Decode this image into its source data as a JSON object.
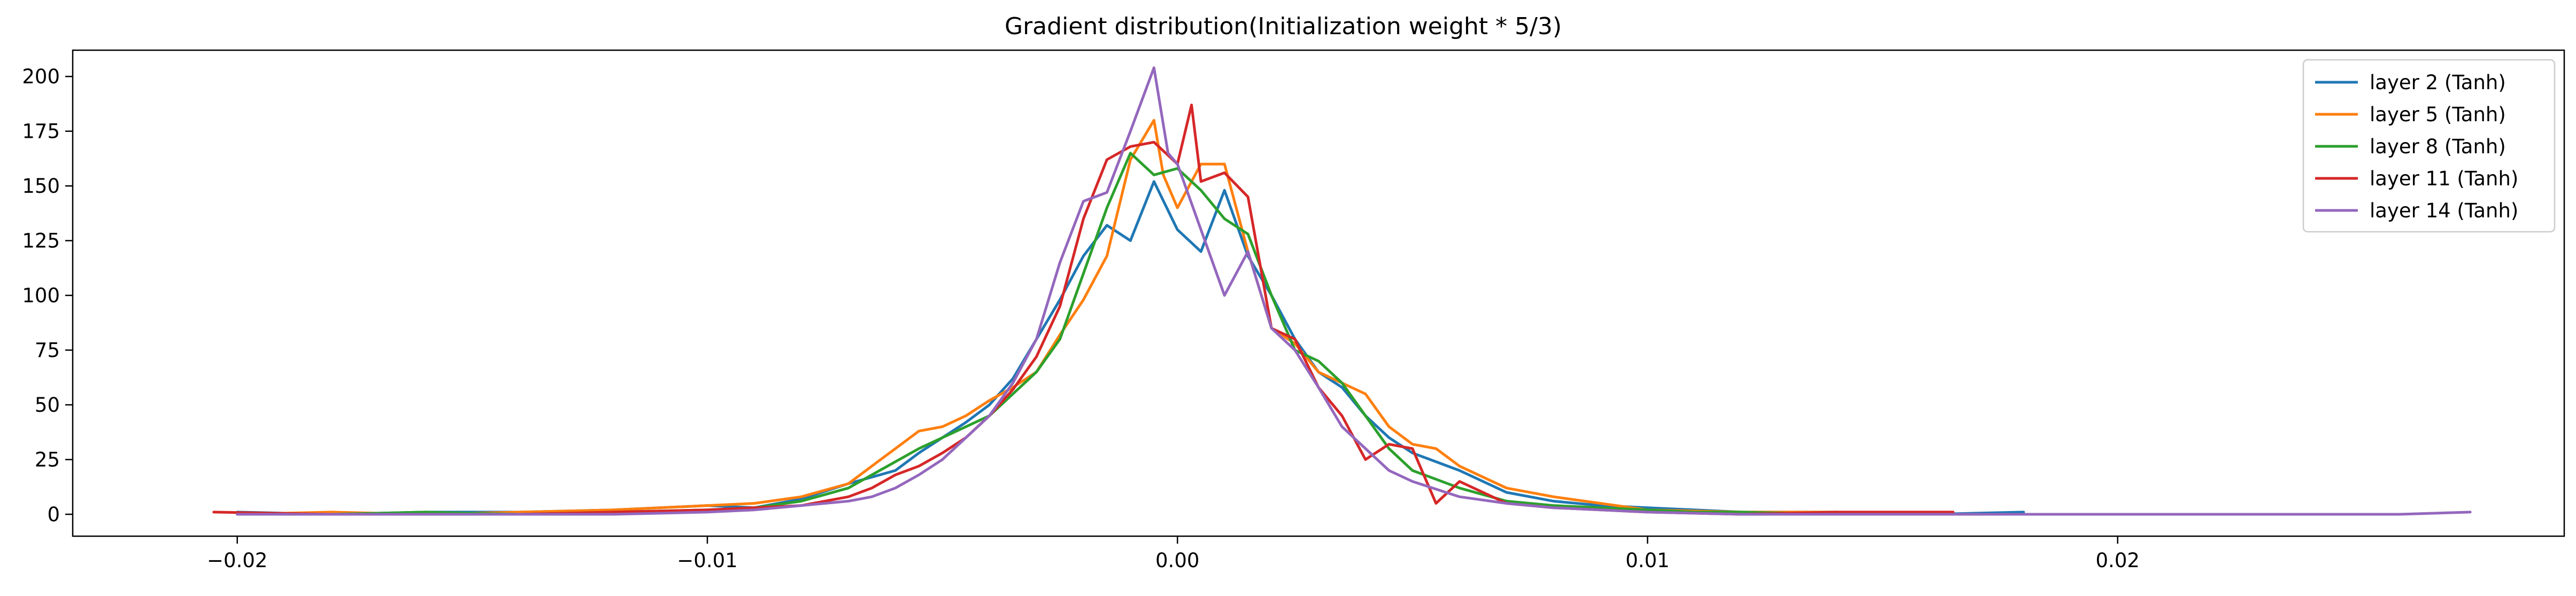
{
  "chart_data": {
    "type": "line",
    "title": "Gradient distribution(Initialization weight * 5/3)",
    "xlabel": "",
    "ylabel": "",
    "xlim": [
      -0.0235,
      0.0295
    ],
    "ylim": [
      -10,
      212
    ],
    "x_ticks": [
      -0.02,
      -0.01,
      0.0,
      0.01,
      0.02
    ],
    "x_tick_labels": [
      "−0.02",
      "−0.01",
      "0.00",
      "0.01",
      "0.02"
    ],
    "y_ticks": [
      0,
      25,
      50,
      75,
      100,
      125,
      150,
      175,
      200
    ],
    "y_tick_labels": [
      "0",
      "25",
      "50",
      "75",
      "100",
      "125",
      "150",
      "175",
      "200"
    ],
    "grid": false,
    "legend_position": "top-right",
    "series": [
      {
        "name": "layer 2 (Tanh)",
        "color": "#1f77b4",
        "x": [
          -0.02,
          -0.018,
          -0.016,
          -0.014,
          -0.012,
          -0.01,
          -0.009,
          -0.008,
          -0.007,
          -0.006,
          -0.0055,
          -0.005,
          -0.0045,
          -0.004,
          -0.0035,
          -0.003,
          -0.0025,
          -0.002,
          -0.0015,
          -0.001,
          -0.0005,
          0.0,
          0.0005,
          0.001,
          0.0015,
          0.002,
          0.0025,
          0.003,
          0.0035,
          0.004,
          0.0045,
          0.005,
          0.006,
          0.007,
          0.008,
          0.009,
          0.01,
          0.011,
          0.012,
          0.014,
          0.016,
          0.018
        ],
        "y": [
          1,
          0,
          1,
          1,
          2,
          4,
          3,
          7,
          14,
          20,
          28,
          35,
          42,
          50,
          62,
          80,
          98,
          118,
          132,
          125,
          152,
          130,
          120,
          148,
          118,
          100,
          80,
          65,
          58,
          45,
          35,
          28,
          20,
          10,
          6,
          4,
          3,
          2,
          1,
          1,
          0,
          1
        ]
      },
      {
        "name": "layer 5 (Tanh)",
        "color": "#ff7f0e",
        "x": [
          -0.02,
          -0.018,
          -0.016,
          -0.014,
          -0.012,
          -0.011,
          -0.01,
          -0.009,
          -0.008,
          -0.007,
          -0.0065,
          -0.006,
          -0.0055,
          -0.005,
          -0.0045,
          -0.004,
          -0.0035,
          -0.003,
          -0.0025,
          -0.002,
          -0.0015,
          -0.001,
          -0.0005,
          -0.0003,
          0.0,
          0.0005,
          0.001,
          0.0015,
          0.002,
          0.0025,
          0.003,
          0.0035,
          0.004,
          0.0045,
          0.005,
          0.0055,
          0.006,
          0.007,
          0.008,
          0.009,
          0.01,
          0.012,
          0.014,
          0.016
        ],
        "y": [
          0,
          1,
          0,
          1,
          2,
          3,
          4,
          5,
          8,
          14,
          22,
          30,
          38,
          40,
          45,
          52,
          58,
          65,
          82,
          98,
          118,
          162,
          180,
          155,
          140,
          160,
          160,
          120,
          85,
          78,
          65,
          60,
          55,
          40,
          32,
          30,
          22,
          12,
          8,
          5,
          2,
          1,
          1,
          0
        ]
      },
      {
        "name": "layer 8 (Tanh)",
        "color": "#2ca02c",
        "x": [
          -0.02,
          -0.018,
          -0.016,
          -0.014,
          -0.012,
          -0.01,
          -0.009,
          -0.008,
          -0.007,
          -0.0065,
          -0.006,
          -0.0055,
          -0.005,
          -0.0045,
          -0.004,
          -0.0035,
          -0.003,
          -0.0025,
          -0.002,
          -0.0015,
          -0.001,
          -0.0005,
          0.0,
          0.0005,
          0.001,
          0.0015,
          0.002,
          0.0025,
          0.003,
          0.0035,
          0.004,
          0.0045,
          0.005,
          0.006,
          0.007,
          0.008,
          0.009,
          0.01,
          0.011,
          0.012,
          0.014
        ],
        "y": [
          0,
          0,
          1,
          0,
          1,
          2,
          3,
          6,
          12,
          18,
          24,
          30,
          35,
          40,
          45,
          55,
          65,
          80,
          110,
          140,
          165,
          155,
          158,
          148,
          135,
          128,
          100,
          75,
          70,
          60,
          45,
          30,
          20,
          12,
          6,
          4,
          3,
          2,
          1,
          1,
          0
        ]
      },
      {
        "name": "layer 11 (Tanh)",
        "color": "#d62728",
        "x": [
          -0.0205,
          -0.018,
          -0.016,
          -0.014,
          -0.012,
          -0.01,
          -0.009,
          -0.008,
          -0.007,
          -0.0065,
          -0.006,
          -0.0055,
          -0.005,
          -0.0045,
          -0.004,
          -0.0035,
          -0.003,
          -0.0025,
          -0.002,
          -0.0015,
          -0.001,
          -0.0005,
          0.0,
          0.0003,
          0.0005,
          0.001,
          0.0015,
          0.002,
          0.0025,
          0.003,
          0.0035,
          0.004,
          0.0045,
          0.005,
          0.0055,
          0.006,
          0.007,
          0.008,
          0.009,
          0.01,
          0.012,
          0.014,
          0.0165
        ],
        "y": [
          1,
          0,
          0,
          0,
          1,
          2,
          3,
          4,
          8,
          12,
          18,
          22,
          28,
          35,
          45,
          57,
          72,
          95,
          135,
          162,
          168,
          170,
          160,
          187,
          152,
          156,
          145,
          85,
          80,
          58,
          45,
          25,
          32,
          30,
          5,
          15,
          5,
          3,
          2,
          1,
          0,
          1,
          1
        ]
      },
      {
        "name": "layer 14 (Tanh)",
        "color": "#9467bd",
        "x": [
          -0.02,
          -0.018,
          -0.016,
          -0.014,
          -0.012,
          -0.01,
          -0.009,
          -0.008,
          -0.007,
          -0.0065,
          -0.006,
          -0.0055,
          -0.005,
          -0.0045,
          -0.004,
          -0.0035,
          -0.003,
          -0.0025,
          -0.002,
          -0.0015,
          -0.001,
          -0.0005,
          -0.0002,
          0.0,
          0.0005,
          0.001,
          0.0015,
          0.002,
          0.0025,
          0.003,
          0.0035,
          0.004,
          0.0045,
          0.005,
          0.006,
          0.007,
          0.008,
          0.009,
          0.01,
          0.012,
          0.014,
          0.016,
          0.018,
          0.02,
          0.022,
          0.024,
          0.026,
          0.0275
        ],
        "y": [
          0,
          0,
          0,
          0,
          0,
          1,
          2,
          4,
          6,
          8,
          12,
          18,
          25,
          35,
          45,
          60,
          80,
          115,
          143,
          147,
          175,
          204,
          165,
          160,
          130,
          100,
          120,
          85,
          75,
          58,
          40,
          30,
          20,
          15,
          8,
          5,
          3,
          2,
          1,
          0,
          0,
          0,
          0,
          0,
          0,
          0,
          0,
          1
        ]
      }
    ]
  }
}
